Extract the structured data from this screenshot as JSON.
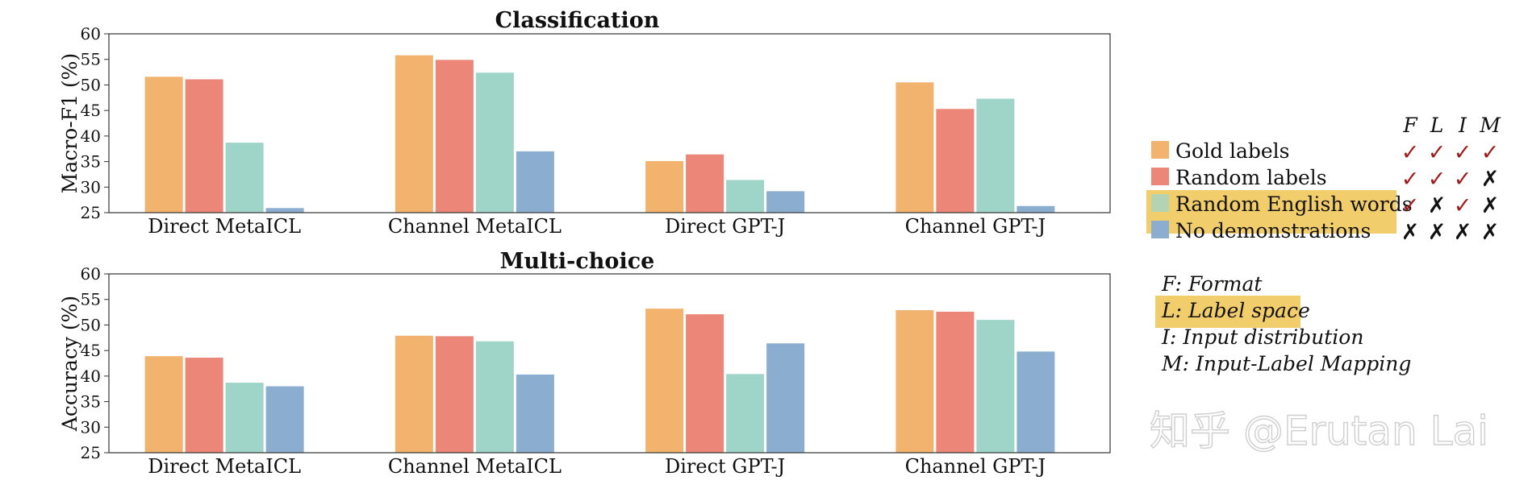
{
  "chart_data": [
    {
      "type": "bar",
      "title": "Classification",
      "ylabel": "Macro-F1 (%)",
      "ylim": [
        25,
        60
      ],
      "yticks": [
        25,
        30,
        35,
        40,
        45,
        50,
        55,
        60
      ],
      "categories": [
        "Direct MetaICL",
        "Channel MetaICL",
        "Direct GPT-J",
        "Channel GPT-J"
      ],
      "series": [
        {
          "name": "Gold labels",
          "values": [
            51.6,
            55.8,
            35.1,
            50.5
          ]
        },
        {
          "name": "Random labels",
          "values": [
            51.1,
            54.9,
            36.4,
            45.3
          ]
        },
        {
          "name": "Random English words",
          "values": [
            38.7,
            52.4,
            31.4,
            47.3
          ]
        },
        {
          "name": "No demonstrations",
          "values": [
            25.9,
            37.0,
            29.2,
            26.3
          ]
        }
      ]
    },
    {
      "type": "bar",
      "title": "Multi-choice",
      "ylabel": "Accuracy (%)",
      "ylim": [
        25,
        60
      ],
      "yticks": [
        25,
        30,
        35,
        40,
        45,
        50,
        55,
        60
      ],
      "categories": [
        "Direct MetaICL",
        "Channel MetaICL",
        "Direct GPT-J",
        "Channel GPT-J"
      ],
      "series": [
        {
          "name": "Gold labels",
          "values": [
            43.9,
            47.9,
            53.2,
            52.9
          ]
        },
        {
          "name": "Random labels",
          "values": [
            43.6,
            47.8,
            52.1,
            52.6
          ]
        },
        {
          "name": "Random English words",
          "values": [
            38.7,
            46.8,
            40.4,
            51.0
          ]
        },
        {
          "name": "No demonstrations",
          "values": [
            38.0,
            40.3,
            46.4,
            44.8
          ]
        }
      ]
    }
  ],
  "colors": {
    "series": [
      "#f2b36f",
      "#eb8679",
      "#9fd4c9",
      "#8badcf"
    ],
    "highlight": "#f2cd6c",
    "check": "#a01c1c",
    "cross": "#111111",
    "axis": "#333333"
  },
  "legend": {
    "header": [
      "F",
      "L",
      "I",
      "M"
    ],
    "rows": [
      {
        "label": "Gold labels",
        "marks": [
          "✓",
          "✓",
          "✓",
          "✓"
        ]
      },
      {
        "label": "Random labels",
        "marks": [
          "✓",
          "✓",
          "✓",
          "✗"
        ]
      },
      {
        "label": "Random English words",
        "marks": [
          "✓",
          "✗",
          "✓",
          "✗"
        ],
        "highlighted": true
      },
      {
        "label": "No demonstrations",
        "marks": [
          "✗",
          "✗",
          "✗",
          "✗"
        ]
      }
    ],
    "definitions": [
      {
        "text": "F: Format"
      },
      {
        "text": "L: Label space",
        "highlighted": true
      },
      {
        "text": "I: Input distribution"
      },
      {
        "text": "M: Input-Label Mapping"
      }
    ]
  },
  "watermark": "知乎 @Erutan Lai"
}
